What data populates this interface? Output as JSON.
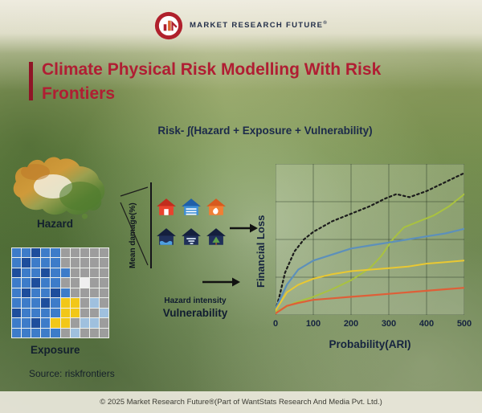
{
  "header": {
    "brand": "MARKET RESEARCH FUTURE",
    "registered": "®"
  },
  "title_line1": "Climate Physical Risk Modelling With Risk",
  "title_line2": "Frontiers",
  "formula": "Risk- ∫(Hazard + Exposure + Vulnerability)",
  "labels": {
    "hazard": "Hazard",
    "exposure": "Exposure",
    "mean_damage": "Mean damage(%)",
    "hazard_intensity": "Hazard intensity",
    "vulnerability": "Vulnerability"
  },
  "source": "Source: riskfrontiers",
  "footer": "© 2025 Market Research Future®(Part of WantStats Research And Media Pvt. Ltd.)",
  "colors": {
    "title_red": "#b01e33",
    "accent_bar": "#8f1526",
    "navy": "#1c2a4a",
    "brand_red": "#b0202c"
  },
  "hazard_houses": {
    "top": [
      {
        "name": "red-fire-house",
        "roof": "#c22c1d",
        "body": "#e8432e",
        "accent": "#ffffff",
        "glyph": "door"
      },
      {
        "name": "blue-flood-house",
        "roof": "#1f5fa8",
        "body": "#3f8fd6",
        "accent": "#ffffff",
        "glyph": "stripes"
      },
      {
        "name": "orange-storm-house",
        "roof": "#d85a1e",
        "body": "#f07f35",
        "accent": "#ffffff",
        "glyph": "flame"
      }
    ],
    "bottom": [
      {
        "name": "dark-flood-house",
        "roof": "#141f3d",
        "body": "#20305a",
        "accent": "#4fa0e0",
        "glyph": "wave"
      },
      {
        "name": "dark-wind-house",
        "roof": "#141f3d",
        "body": "#20305a",
        "accent": "#d7e4f2",
        "glyph": "swirl"
      },
      {
        "name": "dark-tree-house",
        "roof": "#141f3d",
        "body": "#20305a",
        "accent": "#5fa04a",
        "glyph": "tree"
      }
    ]
  },
  "exposure_map": {
    "palette": {
      "B": "#3d7cc9",
      "D": "#1e4e9c",
      "G": "#9d9d9d",
      "W": "#efefef",
      "Y": "#f2c718",
      "L": "#9fc0de"
    },
    "rows": [
      "BBDBBGGGGG",
      "BDBBBGGGGG",
      "DBBDBBGGGG",
      "BBDBBGGWGG",
      "BDBBDBGGGG",
      "BBBDBYYGLG",
      "DBBBBYYGGL",
      "BBDBYYGLLG",
      "BBBBBGLGGG"
    ]
  },
  "chart_data": {
    "type": "line",
    "title": "",
    "xlabel": "Probability(ARI)",
    "ylabel": "Financial Loss",
    "x_ticks": [
      0,
      100,
      200,
      300,
      400,
      500
    ],
    "xlim": [
      0,
      500
    ],
    "ylim": [
      0,
      1
    ],
    "grid": true,
    "legend": "none",
    "series": [
      {
        "name": "series-dotted-black",
        "color": "#1c1c1c",
        "width": 2.2,
        "dash": "2.5 3.5",
        "points": [
          [
            0,
            0.03
          ],
          [
            10,
            0.12
          ],
          [
            25,
            0.28
          ],
          [
            50,
            0.42
          ],
          [
            75,
            0.5
          ],
          [
            100,
            0.55
          ],
          [
            150,
            0.62
          ],
          [
            200,
            0.67
          ],
          [
            250,
            0.72
          ],
          [
            290,
            0.77
          ],
          [
            320,
            0.8
          ],
          [
            355,
            0.78
          ],
          [
            400,
            0.82
          ],
          [
            450,
            0.88
          ],
          [
            500,
            0.94
          ]
        ]
      },
      {
        "name": "series-green",
        "color": "#a9c23f",
        "width": 2,
        "points": [
          [
            0,
            0.02
          ],
          [
            50,
            0.08
          ],
          [
            100,
            0.12
          ],
          [
            150,
            0.17
          ],
          [
            200,
            0.23
          ],
          [
            250,
            0.31
          ],
          [
            280,
            0.39
          ],
          [
            310,
            0.5
          ],
          [
            340,
            0.58
          ],
          [
            380,
            0.62
          ],
          [
            420,
            0.66
          ],
          [
            460,
            0.72
          ],
          [
            500,
            0.8
          ]
        ]
      },
      {
        "name": "series-blue",
        "color": "#5d90ba",
        "width": 2.2,
        "points": [
          [
            0,
            0.04
          ],
          [
            30,
            0.2
          ],
          [
            60,
            0.3
          ],
          [
            100,
            0.36
          ],
          [
            150,
            0.4
          ],
          [
            200,
            0.44
          ],
          [
            250,
            0.46
          ],
          [
            300,
            0.48
          ],
          [
            350,
            0.5
          ],
          [
            400,
            0.52
          ],
          [
            450,
            0.54
          ],
          [
            500,
            0.57
          ]
        ]
      },
      {
        "name": "series-yellow",
        "color": "#e9c832",
        "width": 2,
        "points": [
          [
            0,
            0.03
          ],
          [
            30,
            0.15
          ],
          [
            60,
            0.2
          ],
          [
            100,
            0.24
          ],
          [
            150,
            0.27
          ],
          [
            200,
            0.29
          ],
          [
            250,
            0.3
          ],
          [
            300,
            0.31
          ],
          [
            350,
            0.32
          ],
          [
            400,
            0.34
          ],
          [
            450,
            0.35
          ],
          [
            500,
            0.36
          ]
        ]
      },
      {
        "name": "series-orange",
        "color": "#de5f38",
        "width": 2.2,
        "points": [
          [
            0,
            0.01
          ],
          [
            30,
            0.06
          ],
          [
            60,
            0.08
          ],
          [
            100,
            0.1
          ],
          [
            150,
            0.11
          ],
          [
            200,
            0.12
          ],
          [
            250,
            0.13
          ],
          [
            300,
            0.14
          ],
          [
            350,
            0.15
          ],
          [
            400,
            0.16
          ],
          [
            450,
            0.17
          ],
          [
            500,
            0.18
          ]
        ]
      }
    ]
  }
}
